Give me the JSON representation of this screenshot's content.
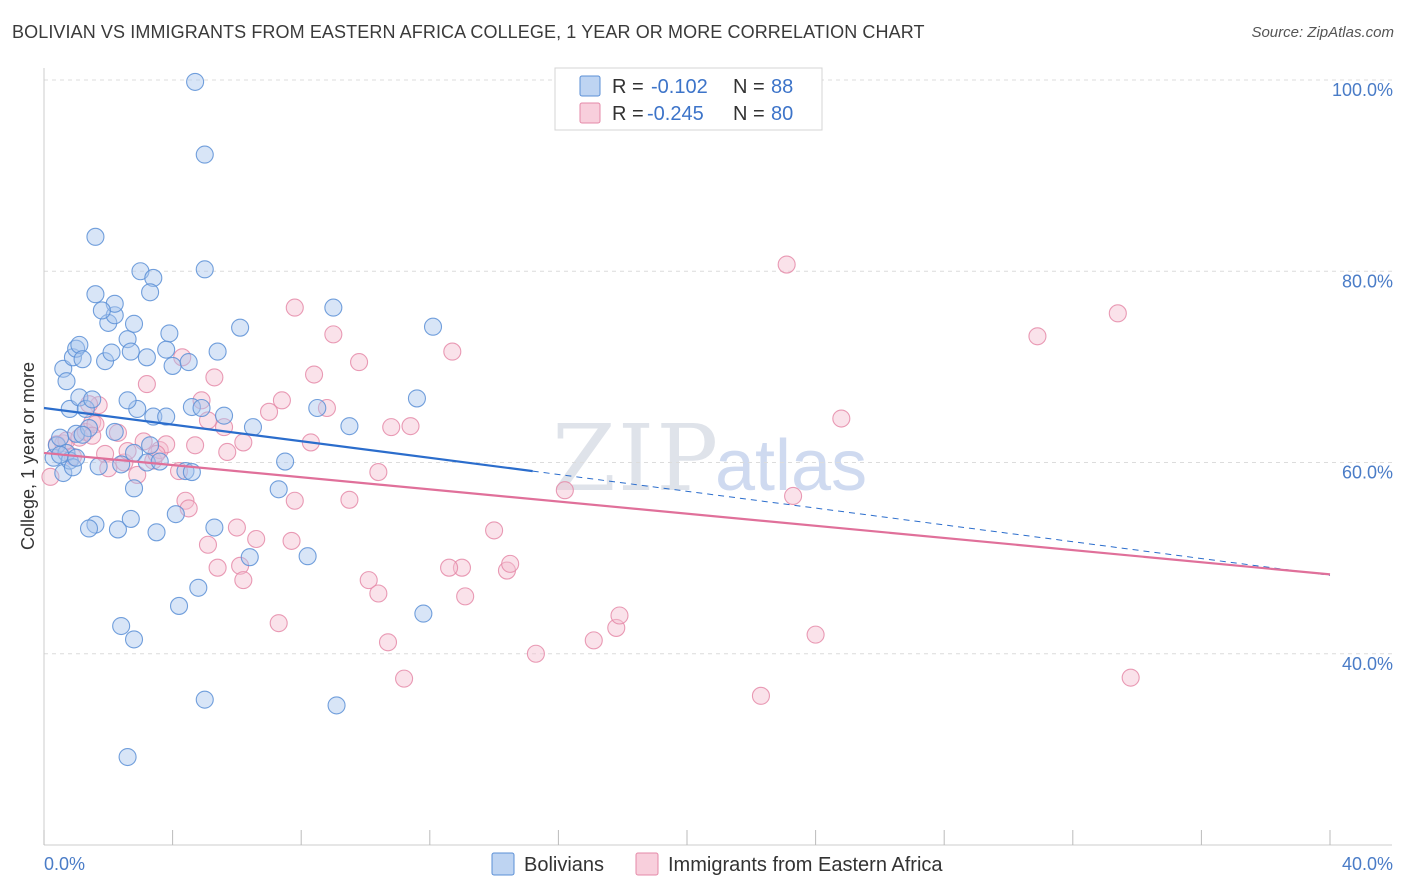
{
  "title": "BOLIVIAN VS IMMIGRANTS FROM EASTERN AFRICA COLLEGE, 1 YEAR OR MORE CORRELATION CHART",
  "source": "Source: ZipAtlas.com",
  "colors": {
    "blue": "#5b8fd6",
    "blue_fill": "#a8c6ee",
    "blue_line": "#2b6dcc",
    "pink": "#e58aa8",
    "pink_fill": "#f5bfd0",
    "pink_line": "#e0709a",
    "tick_text": "#4a7cc7",
    "grid": "#dcdcdc"
  },
  "legend": {
    "rows": [
      {
        "r_label": "R =",
        "r_value": "-0.102",
        "n_label": "N =",
        "n_value": "88"
      },
      {
        "r_label": "R =",
        "r_value": "-0.245",
        "n_label": "N =",
        "n_value": "80"
      }
    ],
    "bottom": [
      "Bolivians",
      "Immigrants from Eastern Africa"
    ]
  },
  "watermark": {
    "zip": "ZIP",
    "atlas": "atlas"
  },
  "chart_data": {
    "type": "scatter",
    "title": "BOLIVIAN VS IMMIGRANTS FROM EASTERN AFRICA COLLEGE, 1 YEAR OR MORE CORRELATION CHART",
    "xlabel": "",
    "ylabel": "College, 1 year or more",
    "xlim": [
      0,
      40
    ],
    "ylim": [
      20,
      100
    ],
    "x_tick_labels": [
      "0.0%",
      "40.0%"
    ],
    "y_ticks": [
      40,
      60,
      80,
      100
    ],
    "y_tick_labels": [
      "40.0%",
      "60.0%",
      "80.0%",
      "100.0%"
    ],
    "legend_position": "top-center",
    "grid": true,
    "series": [
      {
        "name": "Bolivians",
        "r": -0.102,
        "n": 88,
        "trend": {
          "x0": 0,
          "y0": 65.7,
          "x1": 15.2,
          "y1": 59.1,
          "dashed_to_x": 40,
          "dashed_to_y": 48.2
        },
        "points": [
          [
            0.3,
            60.5
          ],
          [
            0.4,
            61.8
          ],
          [
            0.5,
            62.6
          ],
          [
            0.6,
            58.9
          ],
          [
            0.7,
            61.0
          ],
          [
            0.8,
            60.2
          ],
          [
            0.9,
            59.5
          ],
          [
            1.0,
            63.0
          ],
          [
            0.6,
            69.8
          ],
          [
            0.7,
            68.5
          ],
          [
            0.8,
            65.6
          ],
          [
            0.9,
            71.0
          ],
          [
            1.0,
            71.9
          ],
          [
            1.1,
            72.3
          ],
          [
            1.2,
            70.8
          ],
          [
            1.1,
            66.8
          ],
          [
            1.3,
            65.6
          ],
          [
            1.4,
            63.6
          ],
          [
            1.5,
            66.6
          ],
          [
            1.6,
            77.6
          ],
          [
            1.6,
            83.6
          ],
          [
            1.9,
            70.6
          ],
          [
            2.1,
            71.5
          ],
          [
            2.0,
            74.6
          ],
          [
            2.2,
            75.4
          ],
          [
            2.2,
            76.6
          ],
          [
            1.8,
            75.9
          ],
          [
            2.6,
            72.9
          ],
          [
            2.7,
            71.6
          ],
          [
            2.8,
            74.5
          ],
          [
            3.2,
            71.0
          ],
          [
            3.0,
            80.0
          ],
          [
            3.4,
            79.3
          ],
          [
            3.3,
            77.8
          ],
          [
            3.9,
            73.5
          ],
          [
            4.0,
            70.1
          ],
          [
            3.8,
            71.8
          ],
          [
            4.5,
            70.5
          ],
          [
            4.6,
            65.8
          ],
          [
            5.0,
            80.2
          ],
          [
            5.4,
            71.6
          ],
          [
            5.0,
            92.2
          ],
          [
            4.7,
            99.8
          ],
          [
            6.1,
            74.1
          ],
          [
            9.0,
            76.2
          ],
          [
            12.1,
            74.2
          ],
          [
            11.6,
            66.7
          ],
          [
            2.9,
            65.6
          ],
          [
            2.6,
            66.5
          ],
          [
            3.4,
            64.8
          ],
          [
            3.8,
            64.8
          ],
          [
            3.3,
            61.8
          ],
          [
            2.8,
            61.0
          ],
          [
            2.4,
            59.8
          ],
          [
            1.7,
            59.6
          ],
          [
            2.8,
            57.3
          ],
          [
            3.2,
            60.0
          ],
          [
            3.6,
            60.1
          ],
          [
            4.4,
            59.1
          ],
          [
            4.6,
            59.0
          ],
          [
            5.6,
            64.9
          ],
          [
            6.5,
            63.7
          ],
          [
            7.5,
            60.1
          ],
          [
            7.3,
            57.2
          ],
          [
            8.5,
            65.7
          ],
          [
            9.5,
            63.8
          ],
          [
            1.6,
            53.5
          ],
          [
            1.4,
            53.1
          ],
          [
            2.3,
            53.0
          ],
          [
            2.7,
            54.1
          ],
          [
            3.5,
            52.7
          ],
          [
            4.1,
            54.6
          ],
          [
            5.3,
            53.2
          ],
          [
            6.4,
            50.1
          ],
          [
            8.2,
            50.2
          ],
          [
            4.2,
            45.0
          ],
          [
            4.8,
            46.9
          ],
          [
            2.4,
            42.9
          ],
          [
            2.8,
            41.5
          ],
          [
            11.8,
            44.2
          ],
          [
            5.0,
            35.2
          ],
          [
            9.1,
            34.6
          ],
          [
            2.6,
            29.2
          ],
          [
            0.5,
            60.8
          ],
          [
            1.2,
            62.9
          ],
          [
            2.2,
            63.2
          ],
          [
            4.9,
            65.7
          ],
          [
            1.0,
            60.5
          ]
        ]
      },
      {
        "name": "Immigrants from Eastern Africa",
        "r": -0.245,
        "n": 80,
        "trend": {
          "x0": 0,
          "y0": 61.0,
          "x1": 40,
          "y1": 48.3
        },
        "points": [
          [
            0.2,
            58.5
          ],
          [
            0.4,
            61.9
          ],
          [
            0.6,
            62.0
          ],
          [
            0.7,
            62.3
          ],
          [
            0.9,
            60.6
          ],
          [
            1.1,
            62.6
          ],
          [
            1.3,
            63.2
          ],
          [
            1.5,
            64.2
          ],
          [
            1.6,
            64.0
          ],
          [
            1.7,
            66.0
          ],
          [
            1.4,
            66.1
          ],
          [
            1.9,
            60.9
          ],
          [
            2.0,
            59.4
          ],
          [
            2.3,
            63.1
          ],
          [
            2.5,
            60.0
          ],
          [
            2.6,
            61.2
          ],
          [
            2.9,
            58.7
          ],
          [
            3.1,
            62.2
          ],
          [
            3.4,
            60.2
          ],
          [
            3.6,
            61.3
          ],
          [
            3.2,
            68.2
          ],
          [
            3.8,
            61.9
          ],
          [
            4.3,
            71.0
          ],
          [
            4.2,
            59.1
          ],
          [
            4.7,
            61.8
          ],
          [
            5.3,
            68.9
          ],
          [
            4.9,
            66.5
          ],
          [
            5.1,
            64.4
          ],
          [
            5.6,
            63.7
          ],
          [
            5.7,
            61.1
          ],
          [
            6.2,
            62.1
          ],
          [
            7.0,
            65.3
          ],
          [
            7.4,
            66.5
          ],
          [
            7.8,
            76.2
          ],
          [
            8.4,
            69.2
          ],
          [
            8.8,
            65.7
          ],
          [
            9.0,
            73.4
          ],
          [
            8.3,
            62.1
          ],
          [
            9.8,
            70.5
          ],
          [
            10.4,
            59.0
          ],
          [
            10.8,
            63.7
          ],
          [
            4.4,
            56.0
          ],
          [
            4.5,
            55.2
          ],
          [
            5.1,
            51.4
          ],
          [
            5.4,
            49.0
          ],
          [
            6.1,
            49.2
          ],
          [
            6.0,
            53.2
          ],
          [
            6.2,
            47.7
          ],
          [
            6.6,
            52.0
          ],
          [
            7.8,
            56.0
          ],
          [
            7.7,
            51.8
          ],
          [
            9.5,
            56.1
          ],
          [
            10.1,
            47.7
          ],
          [
            10.4,
            46.3
          ],
          [
            10.7,
            41.2
          ],
          [
            11.2,
            37.4
          ],
          [
            12.7,
            71.6
          ],
          [
            13.0,
            49.0
          ],
          [
            12.6,
            49.0
          ],
          [
            13.1,
            46.0
          ],
          [
            14.0,
            52.9
          ],
          [
            14.4,
            48.7
          ],
          [
            14.5,
            49.4
          ],
          [
            15.3,
            40.0
          ],
          [
            16.2,
            57.1
          ],
          [
            17.1,
            41.4
          ],
          [
            17.8,
            42.7
          ],
          [
            17.9,
            44.0
          ],
          [
            22.3,
            35.6
          ],
          [
            23.3,
            56.5
          ],
          [
            24.0,
            42.0
          ],
          [
            23.1,
            80.7
          ],
          [
            24.8,
            64.6
          ],
          [
            30.9,
            73.2
          ],
          [
            33.4,
            75.6
          ],
          [
            33.8,
            37.5
          ],
          [
            7.3,
            43.2
          ],
          [
            11.4,
            63.8
          ],
          [
            3.5,
            60.9
          ],
          [
            1.5,
            62.8
          ]
        ]
      }
    ]
  }
}
